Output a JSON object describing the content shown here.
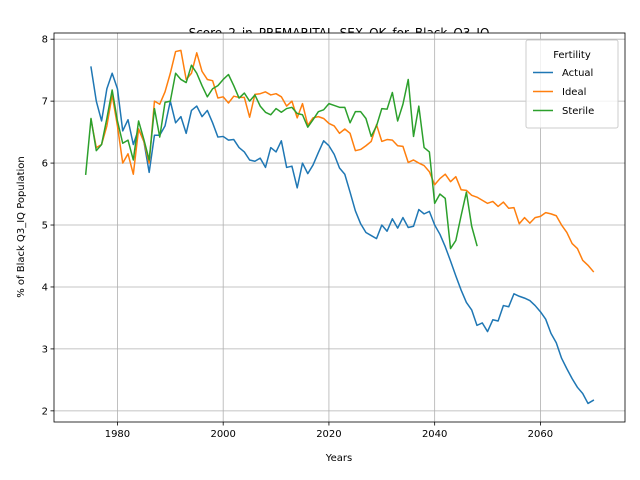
{
  "chart_data": {
    "type": "line",
    "title": "Score_2_in_PREMARITAL_SEX_OK_for_Black_Q3_IQ",
    "xlabel": "Years",
    "ylabel": "% of Black Q3_IQ Population",
    "xlim": [
      1968,
      2076
    ],
    "ylim": [
      1.82,
      8.1
    ],
    "xticks": [
      1980,
      2000,
      2020,
      2040,
      2060
    ],
    "yticks": [
      2,
      3,
      4,
      5,
      6,
      7,
      8
    ],
    "grid": true,
    "legend": {
      "title": "Fertility",
      "placement": "top-right"
    },
    "series": [
      {
        "name": "Actual",
        "color": "#1f77b4",
        "x": [
          1975,
          1976,
          1977,
          1978,
          1979,
          1980,
          1981,
          1982,
          1983,
          1984,
          1985,
          1986,
          1987,
          1988,
          1989,
          1990,
          1991,
          1992,
          1993,
          1994,
          1995,
          1996,
          1997,
          1998,
          1999,
          2000,
          2001,
          2002,
          2003,
          2004,
          2005,
          2006,
          2007,
          2008,
          2009,
          2010,
          2011,
          2012,
          2013,
          2014,
          2015,
          2016,
          2017,
          2018,
          2019,
          2020,
          2021,
          2022,
          2023,
          2024,
          2025,
          2026,
          2027,
          2028,
          2029,
          2030,
          2031,
          2032,
          2033,
          2034,
          2035,
          2036,
          2037,
          2038,
          2039,
          2040,
          2041,
          2042,
          2043,
          2044,
          2045,
          2046,
          2047,
          2048,
          2049,
          2050,
          2051,
          2052,
          2053,
          2054,
          2055,
          2056,
          2057,
          2058,
          2059,
          2060,
          2061,
          2062,
          2063,
          2064,
          2065,
          2066,
          2067,
          2068,
          2069,
          2070
        ],
        "values": [
          7.55,
          7.0,
          6.68,
          7.2,
          7.45,
          7.2,
          6.52,
          6.7,
          6.3,
          6.55,
          6.35,
          5.85,
          6.45,
          6.45,
          6.6,
          7.0,
          6.65,
          6.75,
          6.48,
          6.85,
          6.92,
          6.75,
          6.85,
          6.65,
          6.42,
          6.43,
          6.37,
          6.38,
          6.25,
          6.18,
          6.05,
          6.03,
          6.08,
          5.93,
          6.25,
          6.18,
          6.36,
          5.93,
          5.95,
          5.6,
          6.0,
          5.83,
          5.97,
          6.17,
          6.36,
          6.28,
          6.14,
          5.92,
          5.82,
          5.53,
          5.23,
          5.02,
          4.88,
          4.83,
          4.78,
          5.0,
          4.9,
          5.1,
          4.95,
          5.12,
          4.96,
          4.98,
          5.25,
          5.18,
          5.22,
          5.0,
          4.85,
          4.65,
          4.42,
          4.18,
          3.95,
          3.75,
          3.63,
          3.38,
          3.42,
          3.28,
          3.47,
          3.45,
          3.7,
          3.68,
          3.89,
          3.85,
          3.82,
          3.78,
          3.7,
          3.6,
          3.48,
          3.25,
          3.1,
          2.85,
          2.68,
          2.52,
          2.38,
          2.28,
          2.12,
          2.17
        ]
      },
      {
        "name": "Ideal",
        "color": "#ff7f0e",
        "x": [
          1975,
          1976,
          1977,
          1978,
          1979,
          1980,
          1981,
          1982,
          1983,
          1984,
          1985,
          1986,
          1987,
          1988,
          1989,
          1990,
          1991,
          1992,
          1993,
          1994,
          1995,
          1996,
          1997,
          1998,
          1999,
          2000,
          2001,
          2002,
          2003,
          2004,
          2005,
          2006,
          2007,
          2008,
          2009,
          2010,
          2011,
          2012,
          2013,
          2014,
          2015,
          2016,
          2017,
          2018,
          2019,
          2020,
          2021,
          2022,
          2023,
          2024,
          2025,
          2026,
          2027,
          2028,
          2029,
          2030,
          2031,
          2032,
          2033,
          2034,
          2035,
          2036,
          2037,
          2038,
          2039,
          2040,
          2041,
          2042,
          2043,
          2044,
          2045,
          2046,
          2047,
          2048,
          2049,
          2050,
          2051,
          2052,
          2053,
          2054,
          2055,
          2056,
          2057,
          2058,
          2059,
          2060,
          2061,
          2062,
          2063,
          2064,
          2065,
          2066,
          2067,
          2068,
          2069,
          2070
        ],
        "values": [
          6.7,
          6.25,
          6.3,
          6.6,
          7.1,
          6.6,
          6.0,
          6.15,
          5.82,
          6.55,
          6.35,
          6.0,
          7.0,
          6.95,
          7.15,
          7.45,
          7.8,
          7.82,
          7.35,
          7.45,
          7.78,
          7.48,
          7.35,
          7.33,
          7.05,
          7.07,
          6.97,
          7.08,
          7.06,
          7.06,
          6.74,
          7.11,
          7.12,
          7.15,
          7.1,
          7.12,
          7.07,
          6.92,
          7.0,
          6.73,
          6.96,
          6.61,
          6.73,
          6.75,
          6.72,
          6.64,
          6.6,
          6.48,
          6.55,
          6.48,
          6.2,
          6.22,
          6.28,
          6.35,
          6.62,
          6.35,
          6.38,
          6.37,
          6.28,
          6.27,
          6.01,
          6.05,
          6.0,
          5.96,
          5.86,
          5.65,
          5.75,
          5.82,
          5.7,
          5.78,
          5.57,
          5.56,
          5.48,
          5.45,
          5.4,
          5.35,
          5.38,
          5.3,
          5.37,
          5.27,
          5.28,
          5.02,
          5.12,
          5.03,
          5.12,
          5.14,
          5.2,
          5.18,
          5.15,
          5.0,
          4.88,
          4.7,
          4.62,
          4.43,
          4.35,
          4.25
        ]
      },
      {
        "name": "Sterile",
        "color": "#2ca02c",
        "x": [
          1974,
          1975,
          1976,
          1977,
          1978,
          1979,
          1980,
          1981,
          1982,
          1983,
          1984,
          1985,
          1986,
          1987,
          1988,
          1989,
          1990,
          1991,
          1992,
          1993,
          1994,
          1995,
          1996,
          1997,
          1998,
          1999,
          2000,
          2001,
          2002,
          2003,
          2004,
          2005,
          2006,
          2007,
          2008,
          2009,
          2010,
          2011,
          2012,
          2013,
          2014,
          2015,
          2016,
          2017,
          2018,
          2019,
          2020,
          2021,
          2022,
          2023,
          2024,
          2025,
          2026,
          2027,
          2028,
          2029,
          2030,
          2031,
          2032,
          2033,
          2034,
          2035,
          2036,
          2037,
          2038,
          2039,
          2040,
          2041,
          2042,
          2043,
          2044,
          2045,
          2046,
          2047,
          2048
        ],
        "values": [
          5.82,
          6.72,
          6.2,
          6.3,
          6.72,
          7.18,
          6.68,
          6.32,
          6.37,
          6.05,
          6.68,
          6.38,
          6.05,
          6.88,
          6.42,
          6.98,
          7.0,
          7.45,
          7.35,
          7.3,
          7.58,
          7.45,
          7.25,
          7.07,
          7.2,
          7.25,
          7.35,
          7.43,
          7.25,
          7.05,
          7.13,
          7.0,
          7.1,
          6.92,
          6.82,
          6.78,
          6.88,
          6.82,
          6.88,
          6.9,
          6.8,
          6.78,
          6.58,
          6.7,
          6.83,
          6.86,
          6.96,
          6.93,
          6.9,
          6.9,
          6.65,
          6.83,
          6.83,
          6.72,
          6.43,
          6.6,
          6.88,
          6.87,
          7.14,
          6.68,
          6.95,
          7.35,
          6.43,
          6.92,
          6.25,
          6.18,
          5.35,
          5.5,
          5.43,
          4.62,
          4.75,
          5.15,
          5.53,
          4.98,
          4.67
        ]
      }
    ]
  }
}
